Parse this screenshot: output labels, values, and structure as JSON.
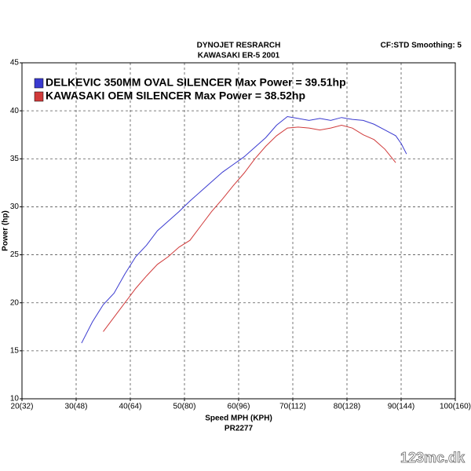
{
  "chart_data": {
    "type": "line",
    "title": "DYNOJET RESRARCH",
    "subtitle": "KAWASAKI ER-5 2001",
    "annotation": "CF:STD Smoothing: 5",
    "x_label": "Speed MPH (KPH)",
    "x_sublabel": "PR2277",
    "y_label": "Power (hp)",
    "watermark": "123mc.dk",
    "grid": true,
    "legend": "top-left",
    "xlim": [
      20,
      100
    ],
    "ylim": [
      10,
      45
    ],
    "xticks": [
      {
        "value": 20,
        "label": "20(32)"
      },
      {
        "value": 30,
        "label": "30(48)"
      },
      {
        "value": 40,
        "label": "40(64)"
      },
      {
        "value": 50,
        "label": "50(80)"
      },
      {
        "value": 60,
        "label": "60(96)"
      },
      {
        "value": 70,
        "label": "70(112)"
      },
      {
        "value": 80,
        "label": "80(128)"
      },
      {
        "value": 90,
        "label": "90(144)"
      },
      {
        "value": 100,
        "label": "100(160)"
      }
    ],
    "yticks": [
      10,
      15,
      20,
      25,
      30,
      35,
      40,
      45
    ],
    "series": [
      {
        "name": "DELKEVIC 350MM OVAL SILENCER  Max Power = 39.51hp",
        "color": "#3a3ad0",
        "x": [
          31,
          33,
          35,
          37,
          39,
          41,
          43,
          45,
          47,
          49,
          51,
          53,
          55,
          57,
          59,
          61,
          63,
          65,
          67,
          69,
          71,
          73,
          75,
          77,
          79,
          81,
          83,
          85,
          87,
          89,
          90,
          91
        ],
        "values": [
          15.8,
          18.0,
          19.8,
          21.0,
          23.0,
          24.8,
          26.0,
          27.5,
          28.5,
          29.5,
          30.6,
          31.6,
          32.6,
          33.6,
          34.4,
          35.2,
          36.2,
          37.2,
          38.5,
          39.4,
          39.2,
          39.0,
          39.2,
          39.0,
          39.3,
          39.1,
          39.0,
          38.6,
          38.0,
          37.4,
          36.6,
          35.5
        ]
      },
      {
        "name": "KAWASAKI OEM SILENCER Max Power = 38.52hp",
        "color": "#d03a3a",
        "x": [
          35,
          37,
          39,
          41,
          43,
          45,
          47,
          49,
          51,
          53,
          55,
          57,
          59,
          61,
          63,
          65,
          67,
          69,
          71,
          73,
          75,
          77,
          79,
          81,
          83,
          85,
          87,
          89
        ],
        "values": [
          17.0,
          18.5,
          20.0,
          21.5,
          22.8,
          24.0,
          24.8,
          25.8,
          26.5,
          28.0,
          29.5,
          30.8,
          32.2,
          33.5,
          35.0,
          36.3,
          37.4,
          38.2,
          38.3,
          38.2,
          38.0,
          38.2,
          38.5,
          38.2,
          37.5,
          37.0,
          36.0,
          34.6
        ]
      }
    ]
  }
}
